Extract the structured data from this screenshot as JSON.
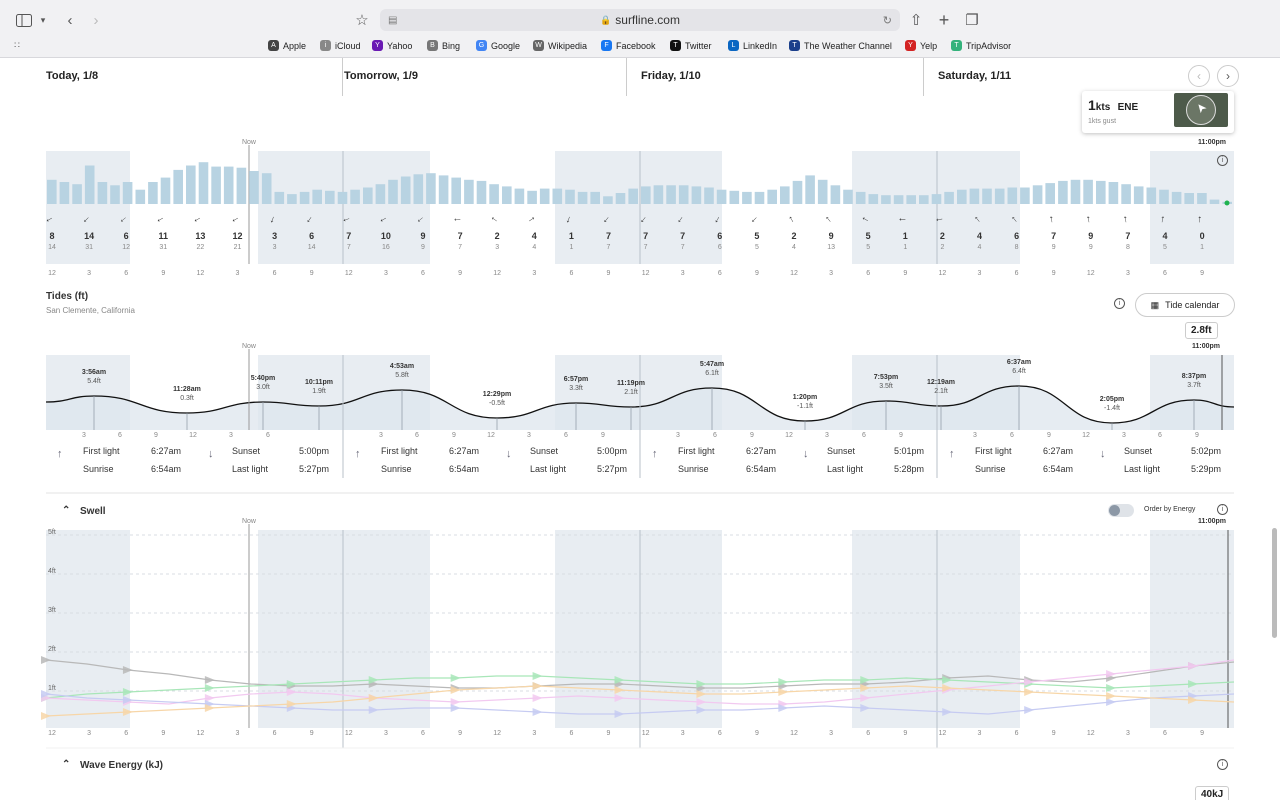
{
  "browser": {
    "url": "surfline.com",
    "bookmarks": [
      {
        "label": "Apple",
        "icon": "apple-icon",
        "color": "#444"
      },
      {
        "label": "iCloud",
        "icon": "icloud-icon",
        "color": "#888"
      },
      {
        "label": "Yahoo",
        "icon": "yahoo-icon",
        "color": "#6a1ab3"
      },
      {
        "label": "Bing",
        "icon": "bing-icon",
        "color": "#777"
      },
      {
        "label": "Google",
        "icon": "google-icon",
        "color": "#4285f4"
      },
      {
        "label": "Wikipedia",
        "icon": "wikipedia-icon",
        "color": "#666"
      },
      {
        "label": "Facebook",
        "icon": "facebook-icon",
        "color": "#1877f2"
      },
      {
        "label": "Twitter",
        "icon": "twitter-icon",
        "color": "#111"
      },
      {
        "label": "LinkedIn",
        "icon": "linkedin-icon",
        "color": "#0a66c2"
      },
      {
        "label": "The Weather Channel",
        "icon": "weather-channel-icon",
        "color": "#1b3f8b"
      },
      {
        "label": "Yelp",
        "icon": "yelp-icon",
        "color": "#d32323"
      },
      {
        "label": "TripAdvisor",
        "icon": "tripadvisor-icon",
        "color": "#34b27b"
      }
    ]
  },
  "days": [
    "Today, 1/8",
    "Tomorrow, 1/9",
    "Friday, 1/10",
    "Saturday, 1/11"
  ],
  "now_label": "Now",
  "end_time": "11:00pm",
  "wind_card": {
    "speed": "1",
    "unit": "kts",
    "direction": "ENE",
    "gust": "1kts gust"
  },
  "wind": {
    "bars": [
      2.2,
      2,
      1.8,
      3.5,
      2,
      1.7,
      2,
      1.3,
      2,
      2.4,
      3.1,
      3.5,
      3.8,
      3.4,
      3.4,
      3.3,
      3,
      2.8,
      1.1,
      0.9,
      1.1,
      1.3,
      1.2,
      1.1,
      1.3,
      1.5,
      1.8,
      2.2,
      2.5,
      2.7,
      2.8,
      2.6,
      2.4,
      2.2,
      2.1,
      1.8,
      1.6,
      1.4,
      1.2,
      1.4,
      1.4,
      1.3,
      1.1,
      1.1,
      0.7,
      1,
      1.4,
      1.6,
      1.7,
      1.7,
      1.7,
      1.6,
      1.5,
      1.3,
      1.2,
      1.1,
      1.1,
      1.3,
      1.6,
      2.1,
      2.6,
      2.2,
      1.7,
      1.3,
      1.1,
      0.9,
      0.8,
      0.8,
      0.8,
      0.8,
      0.9,
      1.1,
      1.3,
      1.4,
      1.4,
      1.4,
      1.5,
      1.5,
      1.7,
      1.9,
      2.1,
      2.2,
      2.2,
      2.1,
      2,
      1.8,
      1.6,
      1.5,
      1.3,
      1.1,
      1,
      1,
      0.4,
      0.2
    ],
    "speeds": [
      "8",
      "14",
      "6",
      "11",
      "13",
      "12",
      "3",
      "6",
      "7",
      "10",
      "9",
      "7",
      "2",
      "4",
      "1",
      "7",
      "7",
      "7",
      "6",
      "5",
      "2",
      "9",
      "5",
      "1",
      "2",
      "4",
      "6",
      "7",
      "9",
      "7",
      "4",
      "0"
    ],
    "gusts": [
      "14",
      "31",
      "12",
      "31",
      "22",
      "21",
      "3",
      "14",
      "7",
      "16",
      "9",
      "7",
      "3",
      "4",
      "1",
      "7",
      "7",
      "7",
      "6",
      "5",
      "4",
      "13",
      "5",
      "1",
      "2",
      "4",
      "8",
      "9",
      "9",
      "8",
      "5",
      "1"
    ],
    "arrows": [
      60,
      45,
      50,
      60,
      60,
      60,
      20,
      35,
      70,
      60,
      50,
      85,
      125,
      235,
      20,
      40,
      40,
      35,
      30,
      45,
      150,
      140,
      120,
      90,
      80,
      140,
      140,
      170,
      170,
      170,
      190,
      180
    ],
    "hours": [
      "12",
      "3",
      "6",
      "9",
      "12",
      "3",
      "6",
      "9",
      "12",
      "3",
      "6",
      "9",
      "12",
      "3",
      "6",
      "9",
      "12",
      "3",
      "6",
      "9",
      "12",
      "3",
      "6",
      "9",
      "12",
      "3",
      "6",
      "9",
      "12",
      "3",
      "6",
      "9"
    ]
  },
  "tides": {
    "title": "Tides (ft)",
    "location": "San Clemente, California",
    "calendar_label": "Tide calendar",
    "current": "2.8ft",
    "points": [
      {
        "time": "3:56am",
        "height": "5.4ft"
      },
      {
        "time": "11:28am",
        "height": "0.3ft"
      },
      {
        "time": "5:40pm",
        "height": "3.0ft"
      },
      {
        "time": "10:11pm",
        "height": "1.9ft"
      },
      {
        "time": "4:53am",
        "height": "5.8ft"
      },
      {
        "time": "12:29pm",
        "height": "-0.5ft"
      },
      {
        "time": "6:57pm",
        "height": "3.3ft"
      },
      {
        "time": "11:19pm",
        "height": "2.1ft"
      },
      {
        "time": "5:47am",
        "height": "6.1ft"
      },
      {
        "time": "1:20pm",
        "height": "-1.1ft"
      },
      {
        "time": "7:53pm",
        "height": "3.5ft"
      },
      {
        "time": "12:19am",
        "height": "2.1ft"
      },
      {
        "time": "6:37am",
        "height": "6.4ft"
      },
      {
        "time": "2:05pm",
        "height": "-1.4ft"
      },
      {
        "time": "8:37pm",
        "height": "3.7ft"
      }
    ],
    "hours": [
      "3",
      "6",
      "9",
      "12",
      "3",
      "6",
      "3",
      "6",
      "9",
      "12",
      "3",
      "6",
      "9",
      "3",
      "6",
      "9",
      "12",
      "3",
      "6",
      "9",
      "3",
      "6",
      "9",
      "12",
      "3",
      "6",
      "9"
    ],
    "sun": [
      {
        "first_light": "6:27am",
        "sunrise": "6:54am",
        "sunset": "5:00pm",
        "last_light": "5:27pm"
      },
      {
        "first_light": "6:27am",
        "sunrise": "6:54am",
        "sunset": "5:00pm",
        "last_light": "5:27pm"
      },
      {
        "first_light": "6:27am",
        "sunrise": "6:54am",
        "sunset": "5:01pm",
        "last_light": "5:28pm"
      },
      {
        "first_light": "6:27am",
        "sunrise": "6:54am",
        "sunset": "5:02pm",
        "last_light": "5:29pm"
      }
    ],
    "labels": {
      "first_light": "First light",
      "sunrise": "Sunrise",
      "sunset": "Sunset",
      "last_light": "Last light"
    }
  },
  "swell": {
    "title": "Swell",
    "toggle_label": "Order by Energy",
    "y_ticks": [
      "5ft",
      "4ft",
      "3ft",
      "2ft",
      "1ft"
    ],
    "hours": [
      "12",
      "3",
      "6",
      "9",
      "12",
      "3",
      "6",
      "9",
      "12",
      "3",
      "6",
      "9",
      "12",
      "3",
      "6",
      "9",
      "12",
      "3",
      "6",
      "9",
      "12",
      "3",
      "6",
      "9",
      "12",
      "3",
      "6",
      "9",
      "12",
      "3",
      "6",
      "9"
    ]
  },
  "wave_energy": {
    "title": "Wave Energy (kJ)",
    "current": "40kJ"
  },
  "colors": {
    "bar": "#b8d3e2",
    "night": "#e8edf2",
    "tide_fill": "#dde6ee",
    "accent": "#1fb34f"
  }
}
